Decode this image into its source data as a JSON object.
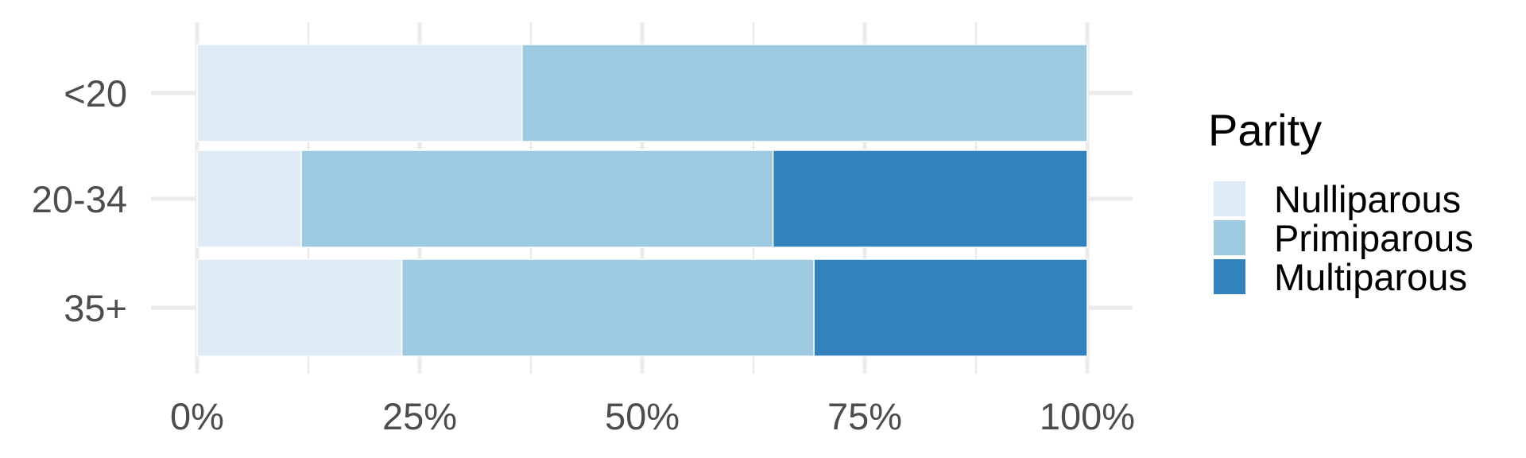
{
  "chart_data": {
    "type": "bar",
    "orientation": "horizontal",
    "stacked": "percent",
    "categories": [
      "<20",
      "20-34",
      "35+"
    ],
    "series": [
      {
        "name": "Nulliparous",
        "color": "#deebf7",
        "values": [
          36.5,
          11.7,
          23.0
        ]
      },
      {
        "name": "Primiparous",
        "color": "#9ecae1",
        "values": [
          63.5,
          53.0,
          46.3
        ]
      },
      {
        "name": "Multiparous",
        "color": "#3182bd",
        "values": [
          0,
          35.3,
          30.7
        ]
      }
    ],
    "xticks": [
      "0%",
      "25%",
      "50%",
      "75%",
      "100%"
    ],
    "xlim": [
      0,
      100
    ],
    "grid": true,
    "legend_title": "Parity",
    "legend_position": "right"
  }
}
